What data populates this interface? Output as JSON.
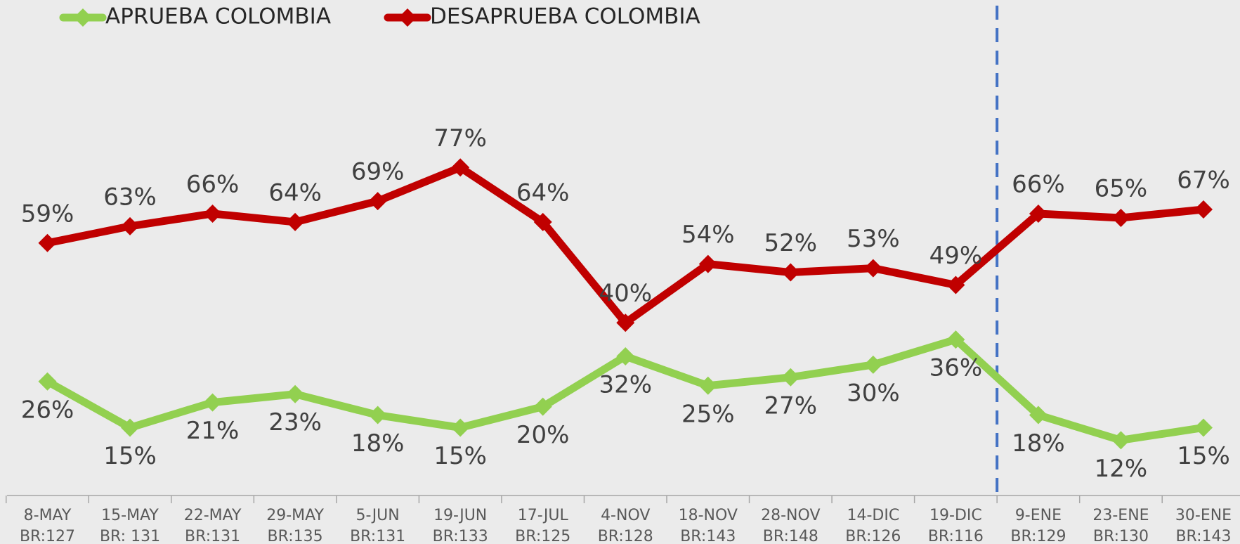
{
  "chart_data": {
    "type": "line",
    "categories": [
      [
        "8-MAY",
        "BR:127"
      ],
      [
        "15-MAY",
        "BR: 131"
      ],
      [
        "22-MAY",
        "BR:131"
      ],
      [
        "29-MAY",
        "BR:135"
      ],
      [
        "5-JUN",
        "BR:131"
      ],
      [
        "19-JUN",
        "BR:133"
      ],
      [
        "17-JUL",
        "BR:125"
      ],
      [
        "4-NOV",
        "BR:128"
      ],
      [
        "18-NOV",
        "BR:143"
      ],
      [
        "28-NOV",
        "BR:148"
      ],
      [
        "14-DIC",
        "BR:126"
      ],
      [
        "19-DIC",
        "BR:116"
      ],
      [
        "9-ENE",
        "BR:129"
      ],
      [
        "23-ENE",
        "BR:130"
      ],
      [
        "30-ENE",
        "BR:143"
      ]
    ],
    "series": [
      {
        "name": "APRUEBA COLOMBIA",
        "color": "#92d050",
        "values": [
          26,
          15,
          21,
          23,
          18,
          15,
          20,
          32,
          25,
          27,
          30,
          36,
          18,
          12,
          15
        ],
        "value_labels": [
          "26%",
          "15%",
          "21%",
          "23%",
          "18%",
          "15%",
          "20%",
          "32%",
          "25%",
          "27%",
          "30%",
          "36%",
          "18%",
          "12%",
          "15%"
        ]
      },
      {
        "name": "DESAPRUEBA COLOMBIA",
        "color": "#c00000",
        "values": [
          59,
          63,
          66,
          64,
          69,
          77,
          64,
          40,
          54,
          52,
          53,
          49,
          66,
          65,
          67
        ],
        "value_labels": [
          "59%",
          "63%",
          "66%",
          "64%",
          "69%",
          "77%",
          "64%",
          "40%",
          "54%",
          "52%",
          "53%",
          "49%",
          "66%",
          "65%",
          "67%"
        ]
      }
    ],
    "ylim": [
      0,
      100
    ]
  }
}
